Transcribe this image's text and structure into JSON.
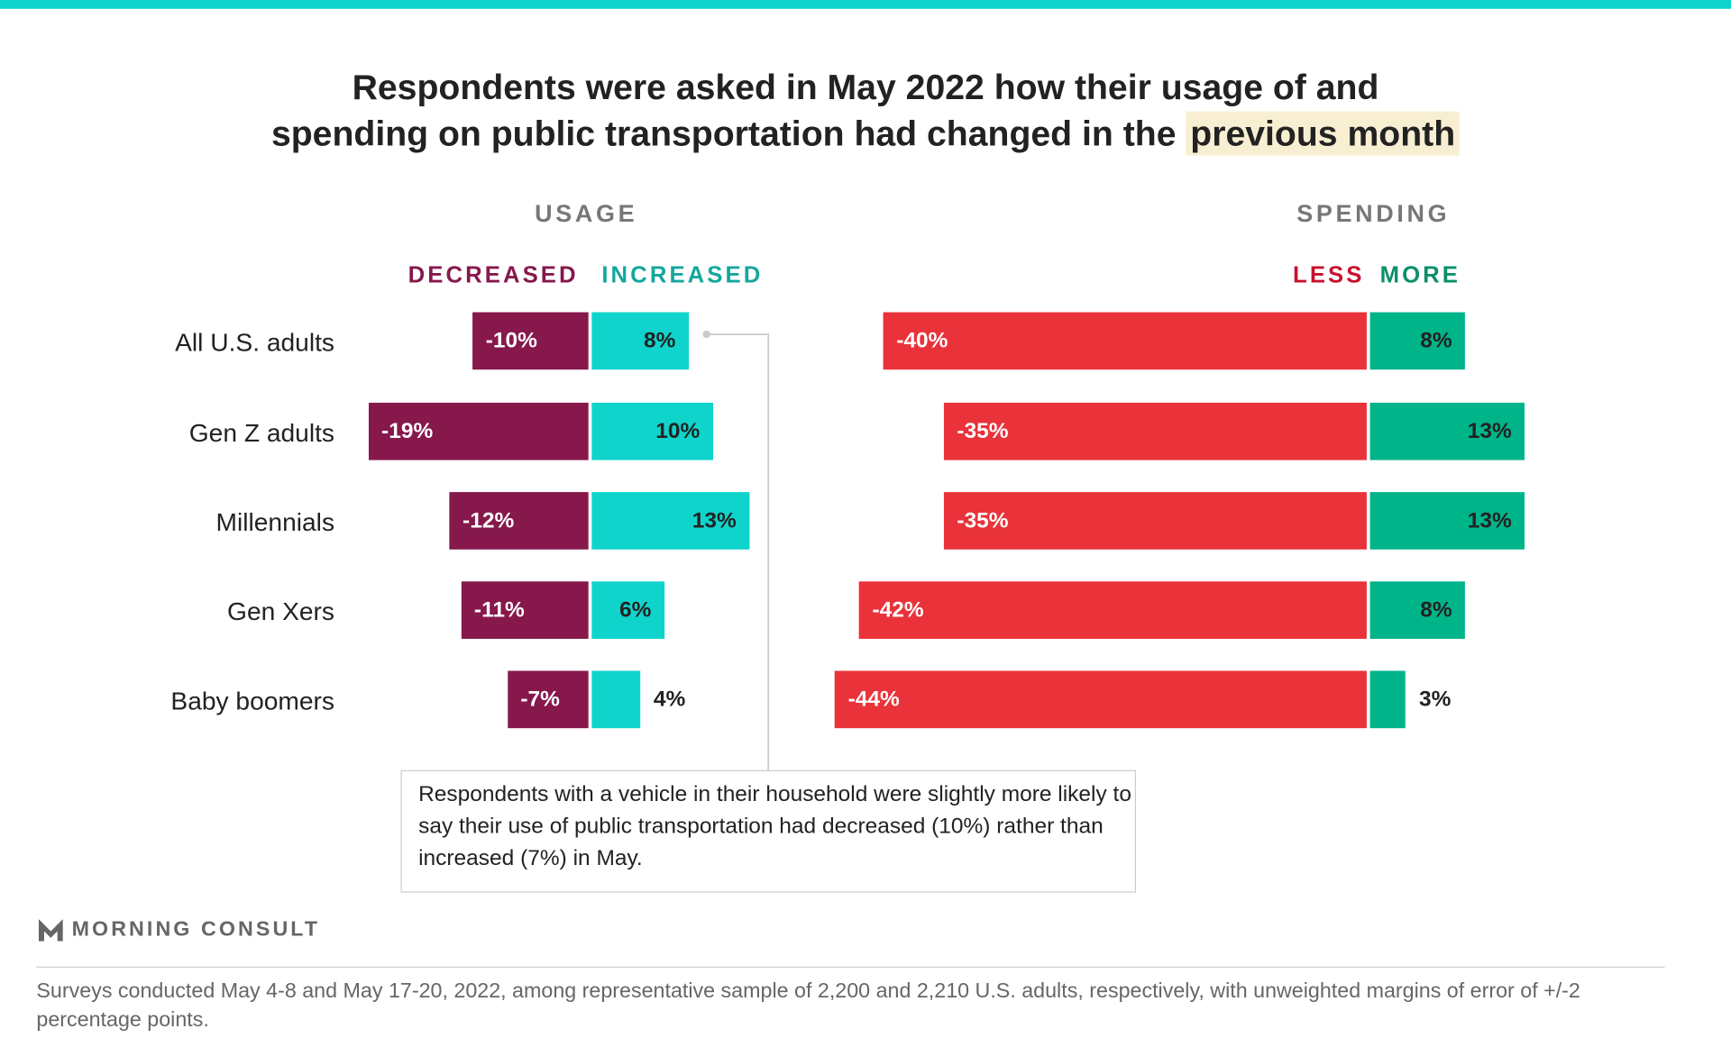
{
  "colors": {
    "top_bar": "#0fd4cc",
    "decreased": "#86184c",
    "increased": "#0fd4cc",
    "less": "#e9323a",
    "more": "#00b48a",
    "highlight": "#f8efd3"
  },
  "chart_data": {
    "type": "bar",
    "title": {
      "line1": "Respondents were asked in May 2022 how their usage of and",
      "line2_prefix": "spending on public transportation had changed in the ",
      "line2_highlight": "previous month"
    },
    "categories": [
      "All U.S. adults",
      "Gen Z adults",
      "Millennials",
      "Gen Xers",
      "Baby boomers"
    ],
    "panels": [
      {
        "title": "USAGE",
        "series": [
          {
            "name": "DECREASED",
            "values": [
              -10,
              -19,
              -12,
              -11,
              -7
            ],
            "labels": [
              "-10%",
              "-19%",
              "-12%",
              "-11%",
              "-7%"
            ]
          },
          {
            "name": "INCREASED",
            "values": [
              8,
              10,
              13,
              6,
              4
            ],
            "labels": [
              "8%",
              "10%",
              "13%",
              "6%",
              "4%"
            ]
          }
        ]
      },
      {
        "title": "SPENDING",
        "series": [
          {
            "name": "LESS",
            "values": [
              -40,
              -35,
              -35,
              -42,
              -44
            ],
            "labels": [
              "-40%",
              "-35%",
              "-35%",
              "-42%",
              "-44%"
            ]
          },
          {
            "name": "MORE",
            "values": [
              8,
              13,
              13,
              8,
              3
            ],
            "labels": [
              "8%",
              "13%",
              "13%",
              "8%",
              "3%"
            ]
          }
        ]
      }
    ],
    "annotation": "Respondents with a vehicle in their household were slightly more likely to say their use of public transportation had decreased (10%) rather than increased (7%) in May."
  },
  "brand": "MORNING CONSULT",
  "footnote": "Surveys conducted May 4-8 and May 17-20, 2022, among representative sample of 2,200 and 2,210 U.S. adults, respectively, with unweighted margins of error of +/-2 percentage points."
}
